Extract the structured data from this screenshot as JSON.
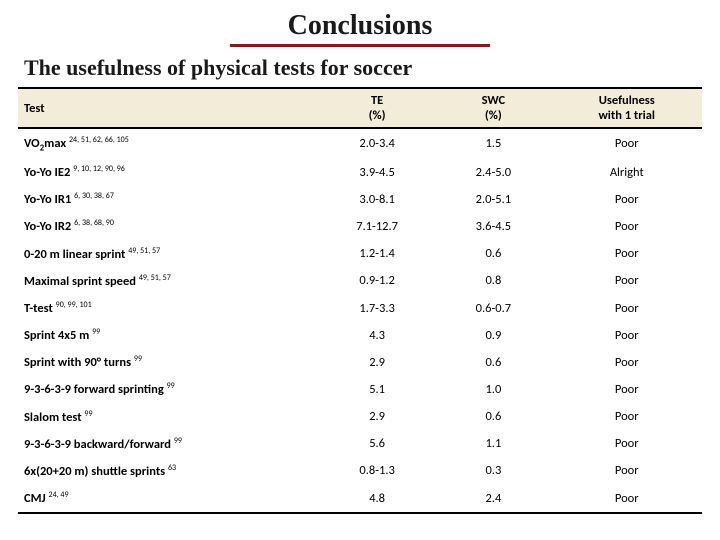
{
  "title": "Conclusions",
  "subtitle": "The usefulness of physical tests for soccer",
  "columns": {
    "test": "Test",
    "te_line1": "TE",
    "te_line2": "(%)",
    "swc_line1": "SWC",
    "swc_line2": "(%)",
    "use_line1": "Usefulness",
    "use_line2": "with 1 trial"
  },
  "rows": [
    {
      "label_html": "VO<sub>2</sub>max <sup>24, 51, 62, 66, 105</sup>",
      "te": "2.0-3.4",
      "swc": "1.5",
      "use": "Poor"
    },
    {
      "label_html": "Yo-Yo IE2 <sup>9, 10, 12, 90, 96</sup>",
      "te": "3.9-4.5",
      "swc": "2.4-5.0",
      "use": "Alright"
    },
    {
      "label_html": "Yo-Yo IR1 <sup>6, 30, 38, 67</sup>",
      "te": "3.0-8.1",
      "swc": "2.0-5.1",
      "use": "Poor"
    },
    {
      "label_html": "Yo-Yo IR2 <sup>6, 38, 68, 90</sup>",
      "te": "7.1-12.7",
      "swc": "3.6-4.5",
      "use": "Poor"
    },
    {
      "label_html": "0-20 m linear sprint <sup>49, 51, 57</sup>",
      "te": "1.2-1.4",
      "swc": "0.6",
      "use": "Poor"
    },
    {
      "label_html": "Maximal sprint speed <sup>49, 51, 57</sup>",
      "te": "0.9-1.2",
      "swc": "0.8",
      "use": "Poor"
    },
    {
      "label_html": "T-test <sup>90, 99, 101</sup>",
      "te": "1.7-3.3",
      "swc": "0.6-0.7",
      "use": "Poor"
    },
    {
      "label_html": "Sprint 4x5 m <sup>99</sup>",
      "te": "4.3",
      "swc": "0.9",
      "use": "Poor"
    },
    {
      "label_html": "Sprint with 90° turns <sup>99</sup>",
      "te": "2.9",
      "swc": "0.6",
      "use": "Poor"
    },
    {
      "label_html": "9-3-6-3-9 forward sprinting <sup>99</sup>",
      "te": "5.1",
      "swc": "1.0",
      "use": "Poor"
    },
    {
      "label_html": "Slalom test <sup>99</sup>",
      "te": "2.9",
      "swc": "0.6",
      "use": "Poor"
    },
    {
      "label_html": "9-3-6-3-9 backward/forward <sup>99</sup>",
      "te": "5.6",
      "swc": "1.1",
      "use": "Poor"
    },
    {
      "label_html": "6x(20+20 m) shuttle sprints <sup>63</sup>",
      "te": "0.8-1.3",
      "swc": "0.3",
      "use": "Poor"
    },
    {
      "label_html": "CMJ <sup>24, 49</sup>",
      "te": "4.8",
      "swc": "2.4",
      "use": "Poor"
    }
  ],
  "styling": {
    "page_bg": "#ffffff",
    "title_color": "#1a1a1a",
    "title_underline_color": "#8a1a1a",
    "header_bg": "#f2ecd9",
    "border_color": "#000000",
    "title_fontsize": 28,
    "subtitle_fontsize": 22,
    "body_fontsize": 12.5,
    "font_family_title": "Georgia, serif",
    "font_family_body": "Calibri, Arial, sans-serif"
  }
}
